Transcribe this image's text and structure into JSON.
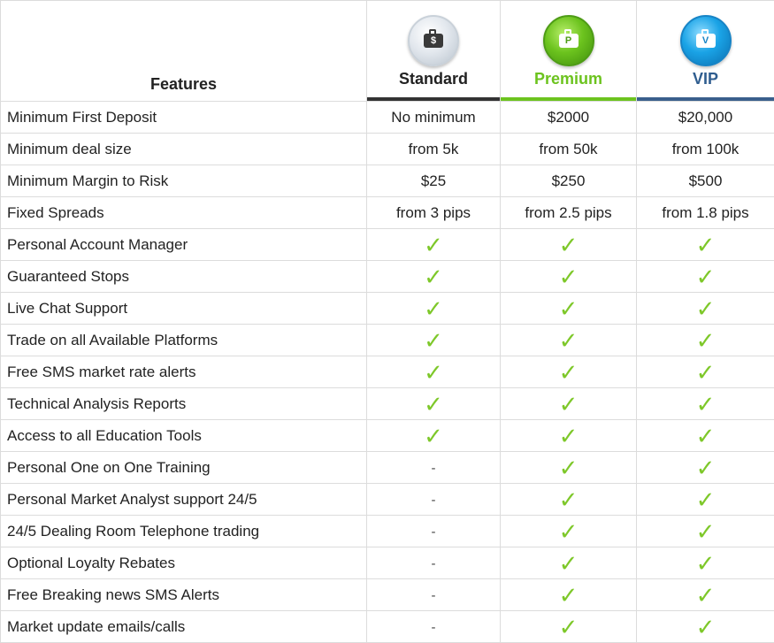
{
  "header": {
    "features_label": "Features",
    "plans": [
      {
        "name": "Standard",
        "icon_letter": "$",
        "icon": "briefcase-icon",
        "color": "#222222",
        "bar_color": "#333333"
      },
      {
        "name": "Premium",
        "icon_letter": "P",
        "icon": "briefcase-icon",
        "color": "#6cc31e",
        "bar_color": "#6cc31e"
      },
      {
        "name": "VIP",
        "icon_letter": "V",
        "icon": "briefcase-icon",
        "color": "#2f5d8f",
        "bar_color": "#3a5f8c"
      }
    ]
  },
  "check_symbol": "✓",
  "check_color": "#7ec82a",
  "rows": [
    {
      "feature": "Minimum First Deposit",
      "values": [
        "No minimum",
        "$2000",
        "$20,000"
      ]
    },
    {
      "feature": "Minimum deal size",
      "values": [
        "from 5k",
        "from 50k",
        "from 100k"
      ]
    },
    {
      "feature": "Minimum Margin to Risk",
      "values": [
        "$25",
        "$250",
        "$500"
      ]
    },
    {
      "feature": "Fixed Spreads",
      "values": [
        "from 3 pips",
        "from 2.5 pips",
        "from 1.8 pips"
      ]
    },
    {
      "feature": "Personal Account Manager",
      "values": [
        "check",
        "check",
        "check"
      ]
    },
    {
      "feature": "Guaranteed Stops",
      "values": [
        "check",
        "check",
        "check"
      ]
    },
    {
      "feature": "Live Chat Support",
      "values": [
        "check",
        "check",
        "check"
      ]
    },
    {
      "feature": "Trade on all Available Platforms",
      "values": [
        "check",
        "check",
        "check"
      ]
    },
    {
      "feature": "Free SMS market rate alerts",
      "values": [
        "check",
        "check",
        "check"
      ]
    },
    {
      "feature": "Technical Analysis Reports",
      "values": [
        "check",
        "check",
        "check"
      ]
    },
    {
      "feature": "Access to all Education Tools",
      "values": [
        "check",
        "check",
        "check"
      ]
    },
    {
      "feature": "Personal One on One Training",
      "values": [
        "-",
        "check",
        "check"
      ]
    },
    {
      "feature": "Personal Market Analyst support 24/5",
      "values": [
        "-",
        "check",
        "check"
      ]
    },
    {
      "feature": "24/5 Dealing Room Telephone trading",
      "values": [
        "-",
        "check",
        "check"
      ]
    },
    {
      "feature": "Optional Loyalty Rebates",
      "values": [
        "-",
        "check",
        "check"
      ]
    },
    {
      "feature": "Free Breaking news SMS Alerts",
      "values": [
        "-",
        "check",
        "check"
      ]
    },
    {
      "feature": "Market update emails/calls",
      "values": [
        "-",
        "check",
        "check"
      ]
    }
  ]
}
